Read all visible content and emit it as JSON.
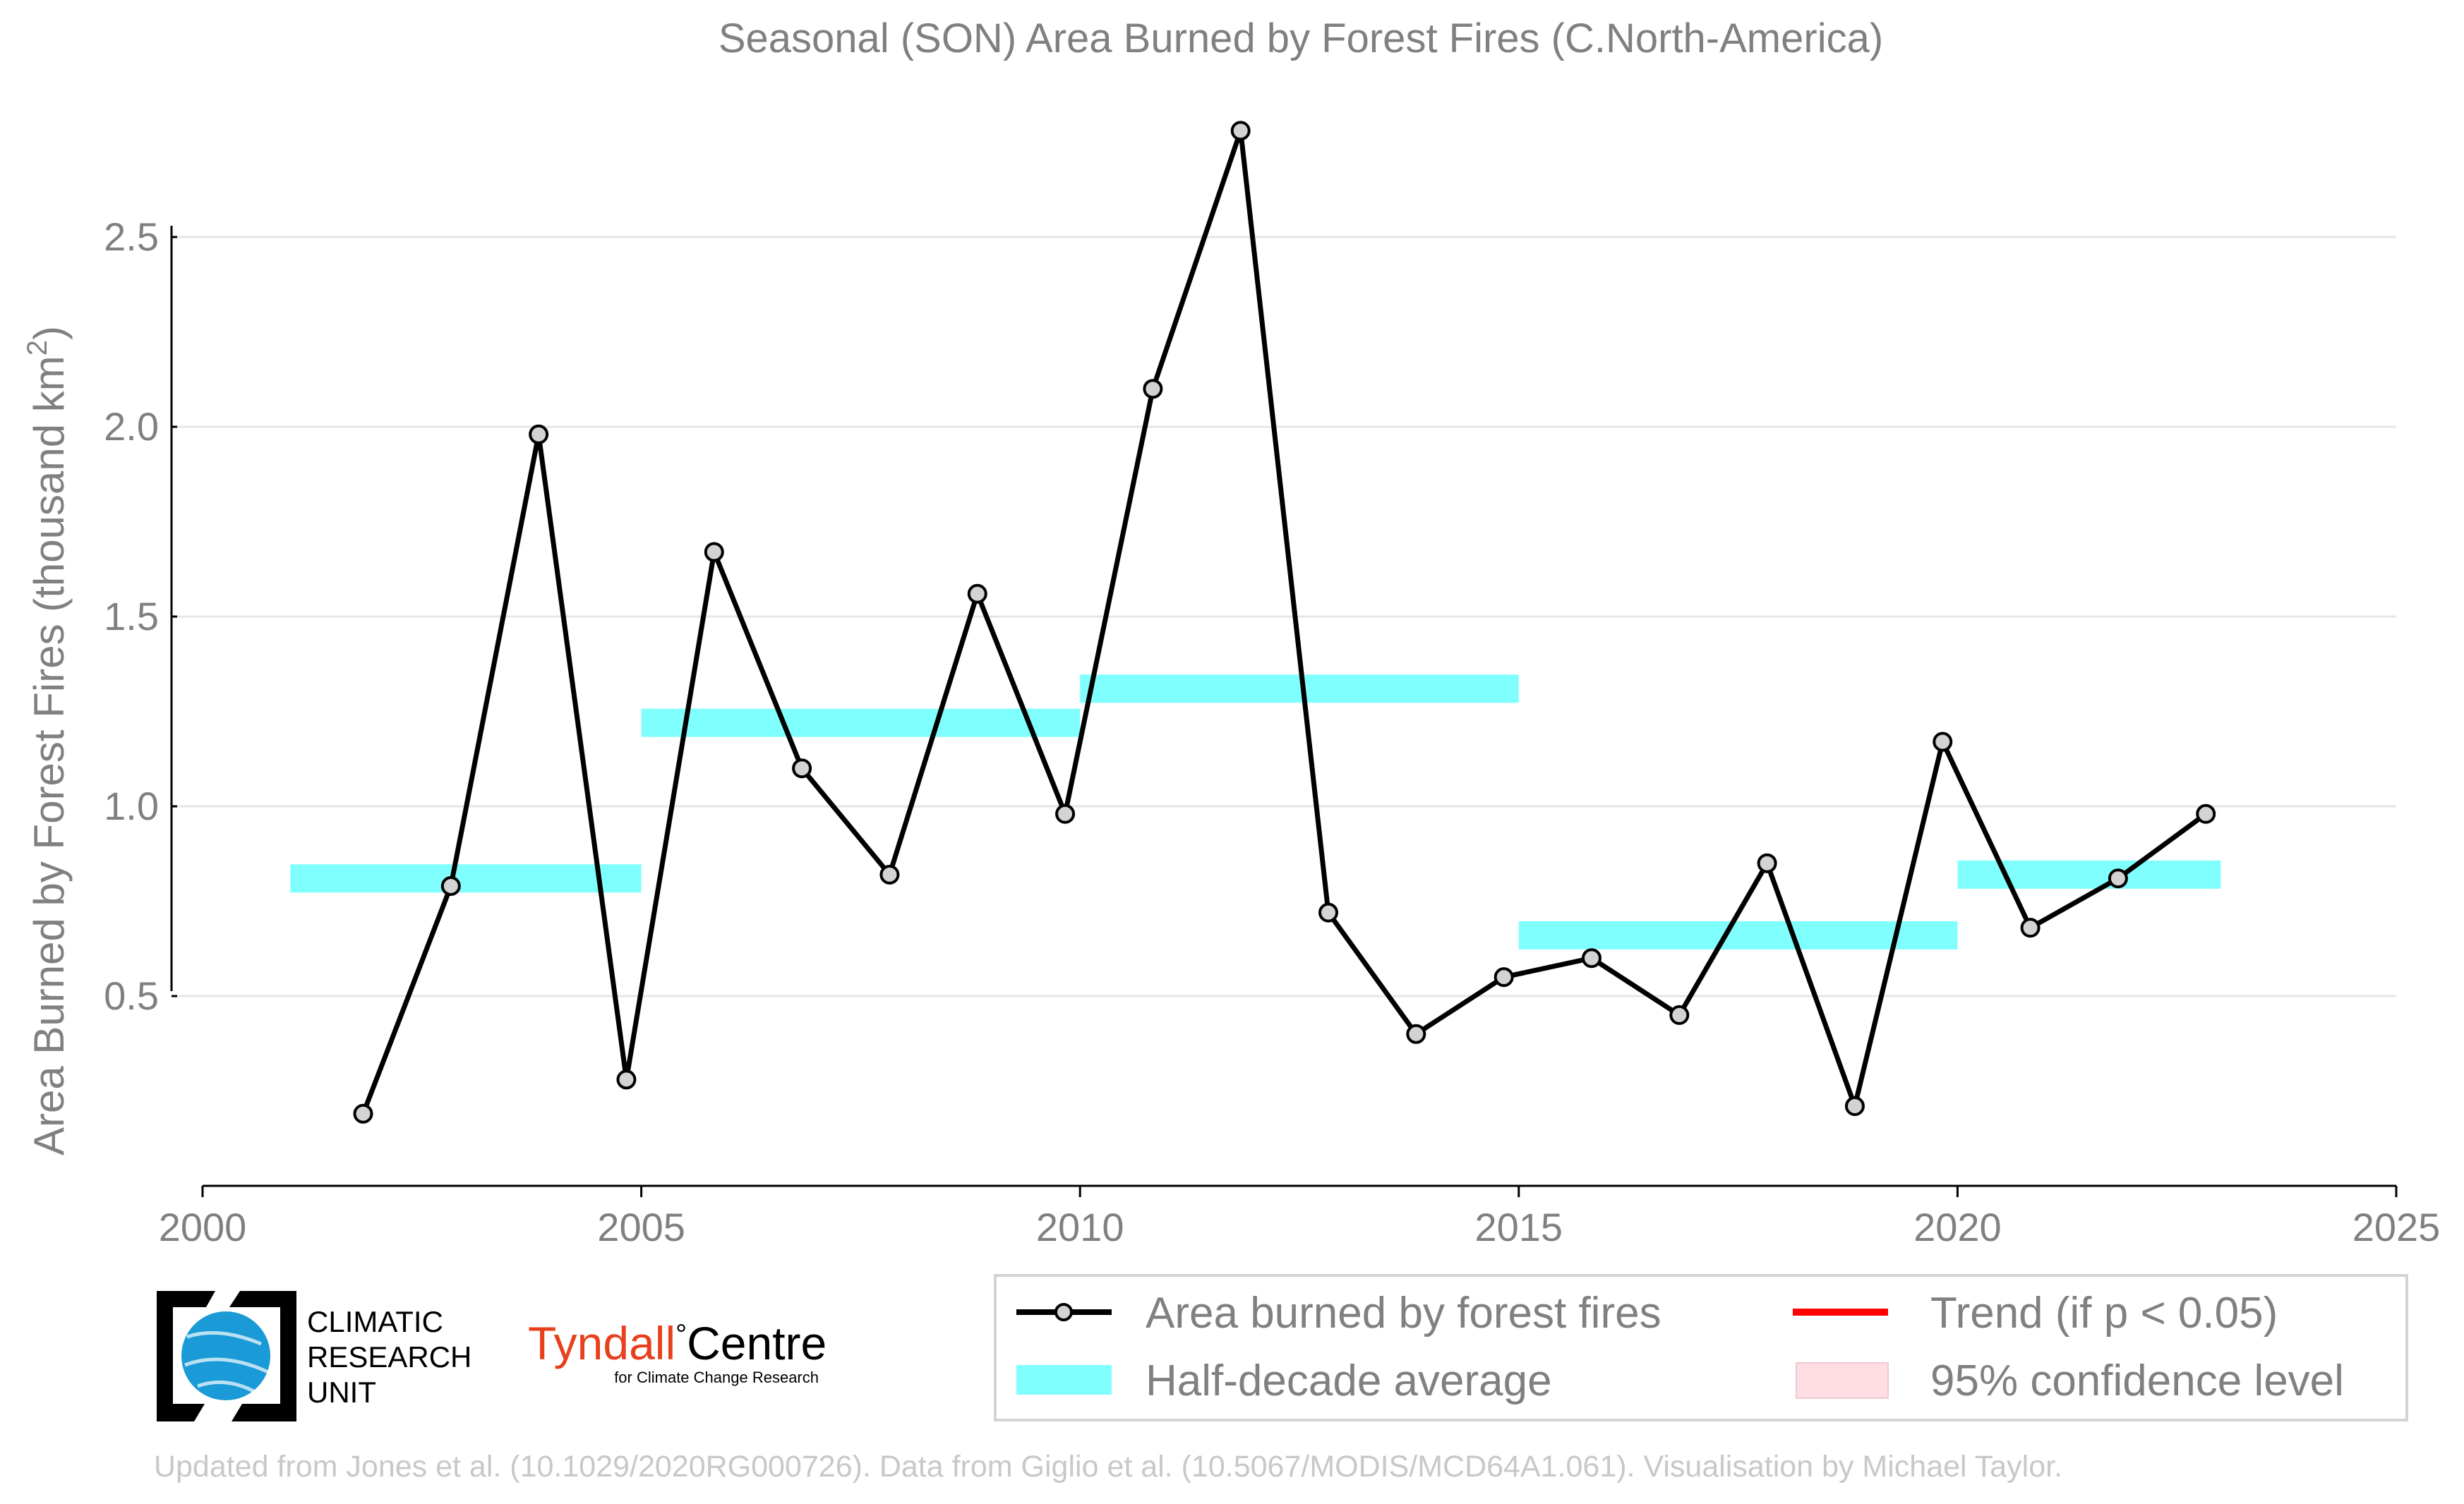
{
  "chart_data": {
    "type": "line",
    "title": "Seasonal (SON) Area Burned by Forest Fires (C.North-America)",
    "ylabel": "Area Burned by Forest Fires (thousand km",
    "ylabel_sup": "2",
    "ylabel_close": ")",
    "xlim": [
      2000,
      2025
    ],
    "ylim": [
      0,
      2.85
    ],
    "x_ticks": [
      2000,
      2005,
      2010,
      2015,
      2020,
      2025
    ],
    "y_ticks": [
      {
        "value": 0.5,
        "label": "0.5"
      },
      {
        "value": 1.0,
        "label": "1.0"
      },
      {
        "value": 1.5,
        "label": "1.5"
      },
      {
        "value": 2.0,
        "label": "2.0"
      },
      {
        "value": 2.5,
        "label": "2.5"
      }
    ],
    "grid": true,
    "series": [
      {
        "name": "Area burned by forest fires",
        "x": [
          2001.83,
          2002.83,
          2003.83,
          2004.83,
          2005.83,
          2006.83,
          2007.83,
          2008.83,
          2009.83,
          2010.83,
          2011.83,
          2012.83,
          2013.83,
          2014.83,
          2015.83,
          2016.83,
          2017.83,
          2018.83,
          2019.83,
          2020.83,
          2021.83,
          2022.83
        ],
        "values": [
          0.19,
          0.79,
          1.98,
          0.28,
          1.67,
          1.1,
          0.82,
          1.56,
          0.98,
          2.1,
          2.78,
          0.72,
          0.4,
          0.55,
          0.6,
          0.45,
          0.85,
          0.21,
          1.17,
          0.68,
          0.81,
          0.98
        ],
        "color": "#000000"
      }
    ],
    "half_decade_average": [
      {
        "x_start": 2001,
        "x_end": 2005,
        "value": 0.81
      },
      {
        "x_start": 2005,
        "x_end": 2010,
        "value": 1.22
      },
      {
        "x_start": 2010,
        "x_end": 2015,
        "value": 1.31
      },
      {
        "x_start": 2015,
        "x_end": 2020,
        "value": 0.66
      },
      {
        "x_start": 2020,
        "x_end": 2023,
        "value": 0.82
      }
    ],
    "half_decade_color": "#80ffff",
    "legend": {
      "placement": "bottom-right",
      "entries": [
        "Area burned by forest fires",
        "Trend (if p < 0.05)",
        "Half-decade average",
        "95% confidence level"
      ],
      "trend_color": "#ff0000",
      "confidence_color": "#ffdde3"
    }
  },
  "logos": {
    "cru_line1": "CLIMATIC",
    "cru_line2": "RESEARCH",
    "cru_line3": "UNIT",
    "cru_color": "#1a9ad6",
    "tyndall_word": "Tyndall",
    "tyndall_degree": "°",
    "tyndall_centre": "Centre",
    "tyndall_sub": "for Climate Change Research",
    "tyndall_color": "#e8401c"
  },
  "footer": "Updated from Jones et al. (10.1029/2020RG000726). Data from Giglio et al. (10.5067/MODIS/MCD64A1.061). Visualisation by Michael Taylor."
}
